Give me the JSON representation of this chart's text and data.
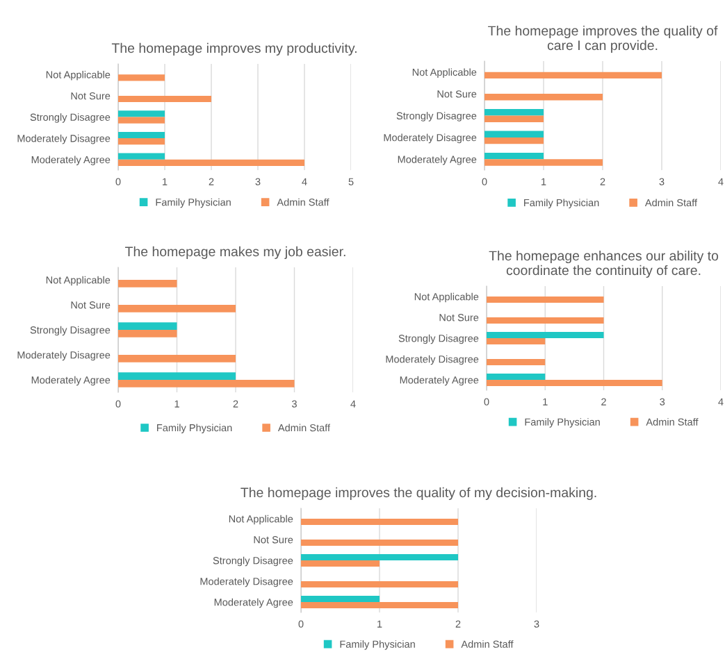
{
  "chart_data": [
    {
      "type": "bar",
      "orientation": "horizontal",
      "title": "The homepage improves my productivity.",
      "categories": [
        "Not Applicable",
        "Not Sure",
        "Strongly Disagree",
        "Moderately Disagree",
        "Moderately Agree"
      ],
      "series": [
        {
          "name": "Family Physician",
          "color": "#1fc7c4",
          "values": [
            null,
            null,
            1,
            1,
            1
          ]
        },
        {
          "name": "Admin Staff",
          "color": "#f7935a",
          "values": [
            1,
            2,
            1,
            1,
            4
          ]
        }
      ],
      "xlim": [
        0,
        5
      ],
      "xticks": [
        0,
        1,
        2,
        3,
        4,
        5
      ],
      "grid": "x",
      "legend": "bottom"
    },
    {
      "type": "bar",
      "orientation": "horizontal",
      "title": "The homepage improves the quality of care I can provide.",
      "categories": [
        "Not Applicable",
        "Not Sure",
        "Strongly Disagree",
        "Moderately Disagree",
        "Moderately Agree"
      ],
      "series": [
        {
          "name": "Family Physician",
          "color": "#1fc7c4",
          "values": [
            null,
            null,
            1,
            1,
            1
          ]
        },
        {
          "name": "Admin Staff",
          "color": "#f7935a",
          "values": [
            3,
            2,
            1,
            1,
            2
          ]
        }
      ],
      "xlim": [
        0,
        4
      ],
      "xticks": [
        0,
        1,
        2,
        3,
        4
      ],
      "grid": "x",
      "legend": "bottom"
    },
    {
      "type": "bar",
      "orientation": "horizontal",
      "title": "The homepage makes my job easier.",
      "categories": [
        "Not Applicable",
        "Not Sure",
        "Strongly Disagree",
        "Moderately Disagree",
        "Moderately Agree"
      ],
      "series": [
        {
          "name": "Family Physician",
          "color": "#1fc7c4",
          "values": [
            null,
            null,
            1,
            null,
            2
          ]
        },
        {
          "name": "Admin Staff",
          "color": "#f7935a",
          "values": [
            1,
            2,
            1,
            2,
            3
          ]
        }
      ],
      "xlim": [
        0,
        4
      ],
      "xticks": [
        0,
        1,
        2,
        3,
        4
      ],
      "grid": "x",
      "legend": "bottom"
    },
    {
      "type": "bar",
      "orientation": "horizontal",
      "title": "The homepage enhances our ability to coordinate the continuity of care.",
      "categories": [
        "Not Applicable",
        "Not Sure",
        "Strongly Disagree",
        "Moderately Disagree",
        "Moderately Agree"
      ],
      "series": [
        {
          "name": "Family Physician",
          "color": "#1fc7c4",
          "values": [
            null,
            null,
            2,
            null,
            1
          ]
        },
        {
          "name": "Admin Staff",
          "color": "#f7935a",
          "values": [
            2,
            2,
            1,
            1,
            3
          ]
        }
      ],
      "xlim": [
        0,
        4
      ],
      "xticks": [
        0,
        1,
        2,
        3,
        4
      ],
      "grid": "x",
      "legend": "bottom"
    },
    {
      "type": "bar",
      "orientation": "horizontal",
      "title": "The homepage improves the quality of my decision-making.",
      "categories": [
        "Not Applicable",
        "Not Sure",
        "Strongly Disagree",
        "Moderately Disagree",
        "Moderately Agree"
      ],
      "series": [
        {
          "name": "Family Physician",
          "color": "#1fc7c4",
          "values": [
            null,
            null,
            2,
            null,
            1
          ]
        },
        {
          "name": "Admin Staff",
          "color": "#f7935a",
          "values": [
            2,
            2,
            1,
            2,
            2
          ]
        }
      ],
      "xlim": [
        0,
        3
      ],
      "xticks": [
        0,
        1,
        2,
        3
      ],
      "grid": "x",
      "legend": "bottom"
    }
  ]
}
